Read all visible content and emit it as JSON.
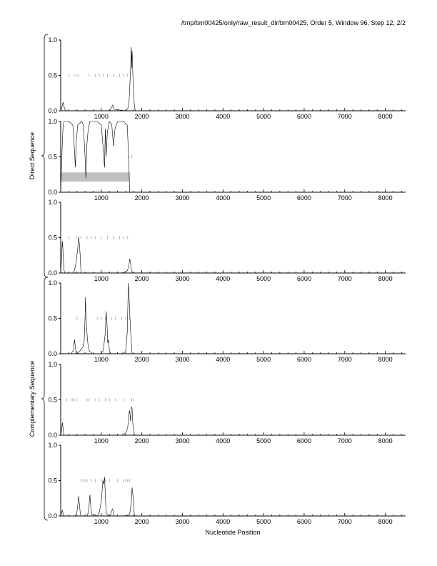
{
  "header": "/tmp/bm00425/only/raw_result_dir/bm00425, Order 5, Window 96, Step 12, 2/2",
  "xlabel": "Nucleotide Position",
  "group_labels": [
    "Direct Sequence",
    "Complementary Sequence"
  ],
  "chart_data": {
    "type": "line",
    "xlim": [
      0,
      8500
    ],
    "ylim": [
      0,
      1
    ],
    "x_ticks": [
      "1000",
      "2000",
      "3000",
      "4000",
      "5000",
      "6000",
      "7000",
      "8000"
    ],
    "y_ticks": [
      "0.0",
      "0.5",
      "1.0"
    ],
    "shaded_region": {
      "panel": 2,
      "x": [
        0,
        1700
      ],
      "y": [
        0.15,
        0.28
      ],
      "color": "#c0c0c0"
    },
    "panels": [
      {
        "group": "Direct Sequence",
        "series": [
          {
            "x": [
              0,
              30,
              60,
              90,
              120,
              600,
              1200,
              1250,
              1280,
              1320,
              1600,
              1650,
              1680,
              1700,
              1720,
              1740,
              1750,
              1760,
              1780,
              1800,
              1820,
              1840,
              8500
            ],
            "y": [
              0,
              0.05,
              0.12,
              0.04,
              0,
              0,
              0,
              0.04,
              0.08,
              0.02,
              0,
              0.03,
              0.08,
              0.3,
              0.55,
              0.9,
              0.6,
              0.85,
              0.5,
              0.2,
              0.05,
              0,
              0
            ]
          }
        ],
        "markers": [
          {
            "x": [
              200,
              330,
              400,
              450,
              700,
              850,
              950,
              1050,
              1150,
              1300,
              1450,
              1550,
              1650
            ],
            "y": 0.5
          }
        ]
      },
      {
        "group": "Direct Sequence",
        "series": [
          {
            "x": [
              0,
              40,
              60,
              80,
              120,
              200,
              300,
              340,
              360,
              380,
              420,
              520,
              560,
              600,
              620,
              650,
              680,
              720,
              800,
              900,
              1000,
              1050,
              1080,
              1100,
              1120,
              1150,
              1200,
              1260,
              1300,
              1340,
              1400,
              1500,
              1560,
              1600,
              1640,
              1680,
              1700,
              1720,
              1750,
              8500
            ],
            "y": [
              0,
              0.7,
              0.95,
              1,
              1,
              1,
              0.95,
              0.6,
              0.35,
              0.7,
              0.95,
              1,
              0.95,
              0.5,
              0.2,
              0.7,
              0.9,
              1,
              1,
              1,
              0.95,
              0.6,
              0.35,
              0.9,
              0.5,
              0.85,
              1,
              0.95,
              0.65,
              0.9,
              1,
              1,
              1,
              0.97,
              0.95,
              0.4,
              0,
              0,
              0,
              0
            ]
          }
        ],
        "markers": [
          {
            "x": [
              1670,
              1750
            ],
            "y": 0.5
          }
        ]
      },
      {
        "group": "Direct Sequence",
        "series": [
          {
            "x": [
              0,
              20,
              40,
              60,
              80,
              100,
              300,
              340,
              380,
              420,
              440,
              460,
              480,
              500,
              1500,
              1640,
              1680,
              1700,
              1720,
              1740,
              1760,
              1780,
              8500
            ],
            "y": [
              0,
              0.2,
              0.45,
              0.3,
              0.05,
              0,
              0,
              0.04,
              0.15,
              0.35,
              0.5,
              0.42,
              0.25,
              0,
              0,
              0.03,
              0.1,
              0.2,
              0.15,
              0.05,
              0.02,
              0,
              0
            ]
          }
        ],
        "markers": [
          {
            "x": [
              200,
              380,
              450,
              500,
              650,
              750,
              850,
              1000,
              1150,
              1300,
              1450,
              1550,
              1650
            ],
            "y": 0.5
          }
        ]
      },
      {
        "group": "Complementary Sequence",
        "series": [
          {
            "x": [
              0,
              250,
              320,
              340,
              360,
              380,
              400,
              420,
              550,
              580,
              600,
              610,
              620,
              640,
              660,
              680,
              700,
              720,
              780,
              900,
              1000,
              1050,
              1100,
              1120,
              1140,
              1160,
              1180,
              1200,
              1220,
              1240,
              1500,
              1600,
              1640,
              1660,
              1670,
              1680,
              1700,
              1720,
              1740,
              1760,
              8500
            ],
            "y": [
              0,
              0,
              0.05,
              0.2,
              0.1,
              0.02,
              0.03,
              0,
              0.1,
              0.2,
              0.5,
              0.8,
              0.6,
              0.35,
              0.2,
              0.1,
              0.05,
              0.03,
              0,
              0,
              0,
              0.05,
              0.3,
              0.6,
              0.45,
              0.15,
              0.2,
              0.05,
              0.02,
              0,
              0,
              0.03,
              0.3,
              0.8,
              1,
              0.85,
              0.6,
              0.35,
              0.15,
              0,
              0
            ]
          }
        ],
        "markers": [
          {
            "x": [
              400,
              600,
              900,
              1000,
              1100,
              1250,
              1350,
              1500,
              1600,
              1700
            ],
            "y": 0.5
          }
        ]
      },
      {
        "group": "Complementary Sequence",
        "series": [
          {
            "x": [
              0,
              20,
              40,
              60,
              80,
              1500,
              1600,
              1650,
              1680,
              1700,
              1720,
              1740,
              1760,
              1780,
              1800,
              1820,
              8500
            ],
            "y": [
              0,
              0.05,
              0.18,
              0.1,
              0,
              0,
              0.03,
              0.1,
              0.3,
              0.35,
              0.2,
              0.4,
              0.38,
              0.15,
              0.05,
              0,
              0
            ]
          }
        ],
        "markers": [
          {
            "x": [
              150,
              250,
              300,
              330,
              400,
              650,
              700,
              850,
              950,
              1100,
              1200,
              1350,
              1550,
              1750,
              1800
            ],
            "y": 0.5
          }
        ]
      },
      {
        "group": "Complementary Sequence",
        "series": [
          {
            "x": [
              0,
              20,
              40,
              60,
              80,
              350,
              400,
              420,
              440,
              460,
              480,
              500,
              650,
              680,
              700,
              720,
              740,
              760,
              900,
              950,
              1000,
              1040,
              1060,
              1080,
              1100,
              1120,
              1150,
              1200,
              1240,
              1260,
              1280,
              1300,
              1320,
              1600,
              1700,
              1740,
              1760,
              1780,
              1800,
              1820,
              8500
            ],
            "y": [
              0,
              0.04,
              0.08,
              0.03,
              0,
              0,
              0.05,
              0.15,
              0.28,
              0.18,
              0.05,
              0,
              0,
              0.05,
              0.15,
              0.3,
              0.15,
              0.03,
              0,
              0.05,
              0.2,
              0.5,
              0.45,
              0.55,
              0.3,
              0.05,
              0.02,
              0,
              0.03,
              0.08,
              0.1,
              0.05,
              0,
              0,
              0.02,
              0.2,
              0.4,
              0.3,
              0.1,
              0,
              0
            ]
          }
        ],
        "markers": [
          {
            "x": [
              500,
              550,
              600,
              650,
              750,
              850,
              1000,
              1100,
              1200,
              1400,
              1550,
              1600,
              1650,
              1700
            ],
            "y": 0.5
          }
        ]
      }
    ]
  }
}
